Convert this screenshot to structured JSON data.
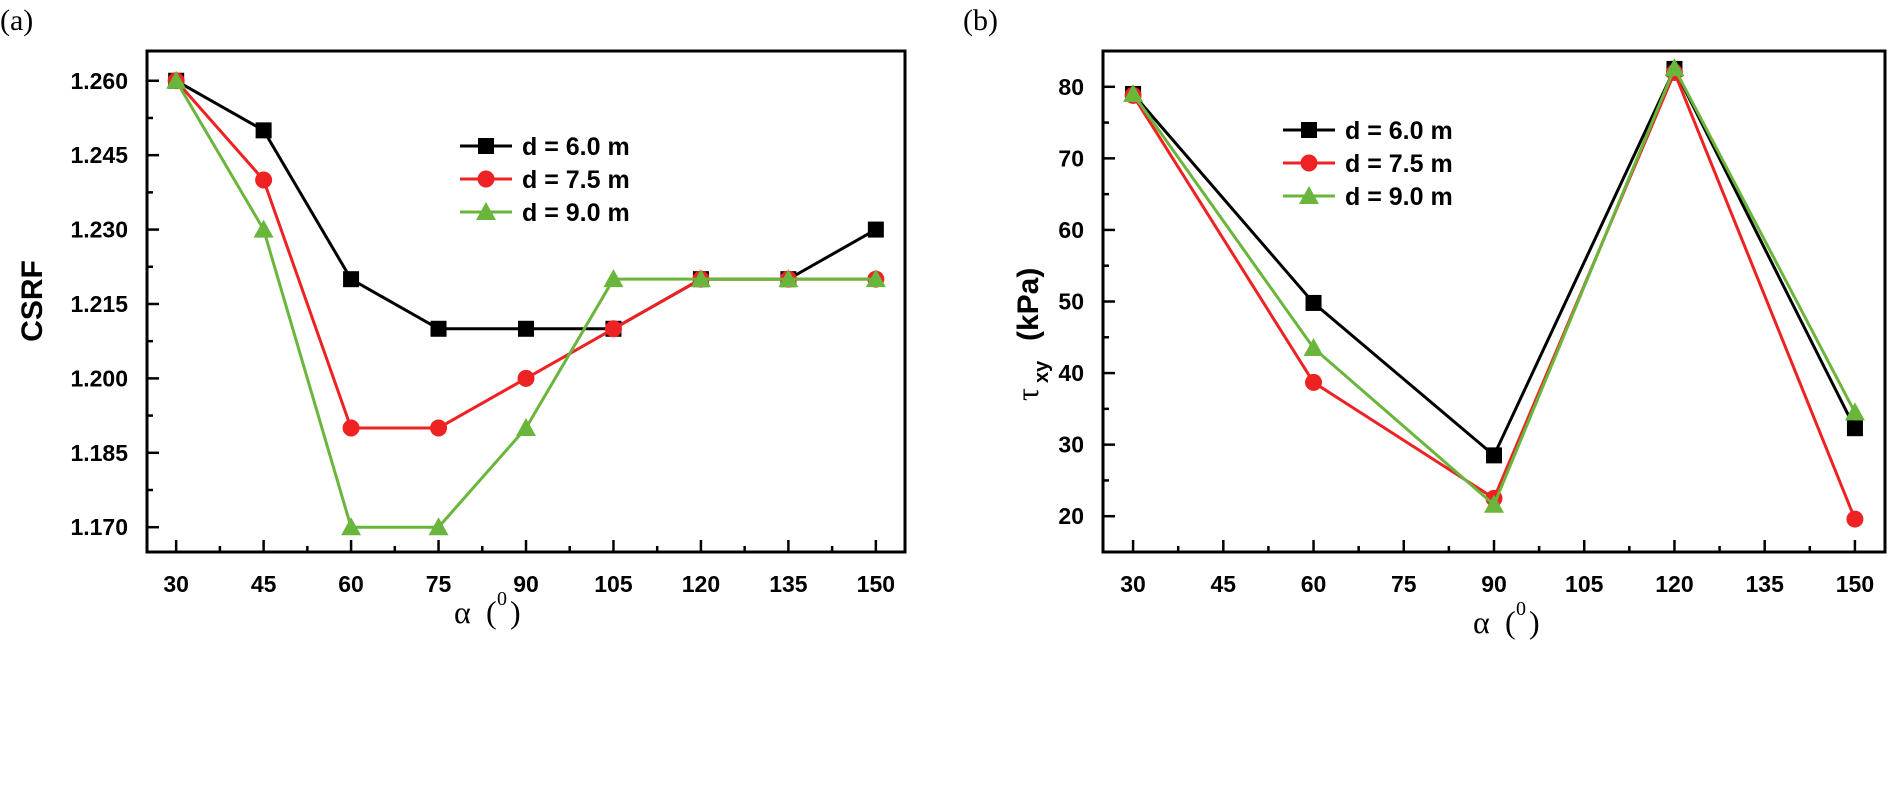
{
  "chart_data": [
    {
      "type": "line",
      "panel_label": "(a)",
      "ylabel": "CSRF",
      "xlabel_symbol": "α",
      "xlabel_paren_open": "(",
      "xlabel_superscript": "0",
      "xlabel_paren_close": ")",
      "x_ticks": [
        "30",
        "45",
        "60",
        "75",
        "90",
        "105",
        "120",
        "135",
        "150"
      ],
      "y_ticks": [
        "1.170",
        "1.185",
        "1.200",
        "1.215",
        "1.230",
        "1.245",
        "1.260"
      ],
      "xlim": [
        25,
        155
      ],
      "ylim": [
        1.165,
        1.266
      ],
      "legend_position": "top-right",
      "series": [
        {
          "name": "d = 6.0 m",
          "color": "#000000",
          "marker": "square",
          "x": [
            30,
            45,
            60,
            75,
            90,
            105,
            120,
            135,
            150
          ],
          "y": [
            1.26,
            1.25,
            1.22,
            1.21,
            1.21,
            1.21,
            1.22,
            1.22,
            1.23
          ]
        },
        {
          "name": "d = 7.5 m",
          "color": "#ee2222",
          "marker": "circle",
          "x": [
            30,
            45,
            60,
            75,
            90,
            105,
            120,
            135,
            150
          ],
          "y": [
            1.26,
            1.24,
            1.19,
            1.19,
            1.2,
            1.21,
            1.22,
            1.22,
            1.22
          ]
        },
        {
          "name": "d = 9.0 m",
          "color": "#6ab63c",
          "marker": "triangle",
          "x": [
            30,
            45,
            60,
            75,
            90,
            105,
            120,
            135,
            150
          ],
          "y": [
            1.26,
            1.23,
            1.17,
            1.17,
            1.19,
            1.22,
            1.22,
            1.22,
            1.22
          ]
        }
      ]
    },
    {
      "type": "line",
      "panel_label": "(b)",
      "ylabel_main": "τ",
      "ylabel_sub": "xy",
      "ylabel_unit": "(kPa)",
      "xlabel_symbol": "α",
      "xlabel_paren_open": "(",
      "xlabel_superscript": "0",
      "xlabel_paren_close": ")",
      "x_ticks": [
        "30",
        "45",
        "60",
        "75",
        "90",
        "105",
        "120",
        "135",
        "150"
      ],
      "y_ticks": [
        "20",
        "30",
        "40",
        "50",
        "60",
        "70",
        "80"
      ],
      "xlim": [
        25,
        155
      ],
      "ylim": [
        15,
        85
      ],
      "legend_position": "top-left",
      "series": [
        {
          "name": "d = 6.0 m",
          "color": "#000000",
          "marker": "square",
          "x": [
            30,
            60,
            90,
            120,
            150
          ],
          "y": [
            79,
            49.8,
            28.5,
            82.5,
            32.3
          ]
        },
        {
          "name": "d = 7.5 m",
          "color": "#ee2222",
          "marker": "circle",
          "x": [
            30,
            60,
            90,
            120,
            150
          ],
          "y": [
            78.8,
            38.7,
            22.5,
            82.0,
            19.6
          ]
        },
        {
          "name": "d = 9.0 m",
          "color": "#6ab63c",
          "marker": "triangle",
          "x": [
            30,
            60,
            90,
            120,
            150
          ],
          "y": [
            79.0,
            43.5,
            21.6,
            82.6,
            34.5
          ]
        }
      ]
    }
  ]
}
